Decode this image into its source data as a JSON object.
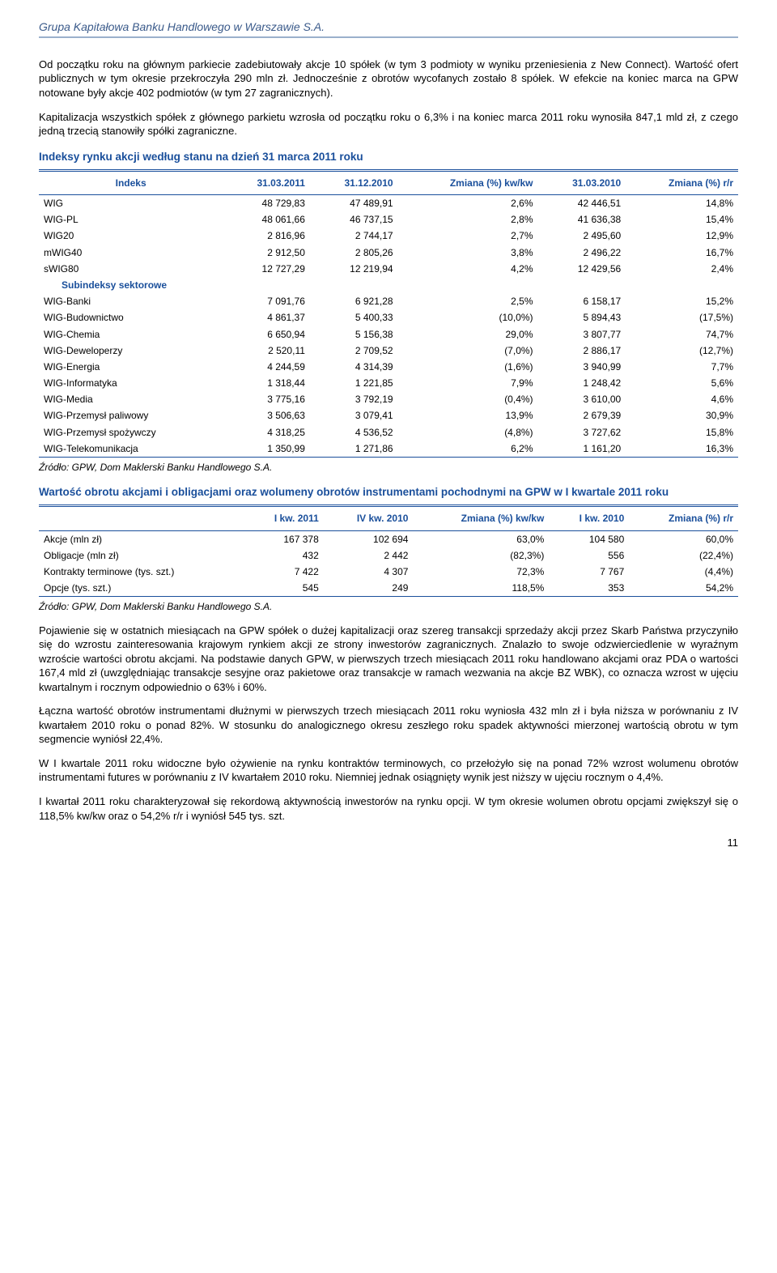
{
  "header": {
    "title": "Grupa Kapitałowa Banku Handlowego w Warszawie S.A."
  },
  "para1": "Od początku roku na głównym parkiecie zadebiutowały akcje 10 spółek (w tym 3 podmioty w wyniku przeniesienia z New Connect). Wartość ofert publicznych w tym okresie przekroczyła 290 mln zł. Jednocześnie z obrotów wycofanych zostało 8 spółek. W efekcie na koniec marca na GPW notowane były akcje 402 podmiotów (w tym 27 zagranicznych).",
  "para2": "Kapitalizacja wszystkich spółek z głównego parkietu wzrosła od początku roku o 6,3% i na koniec marca 2011 roku wynosiła 847,1 mld zł, z czego jedną trzecią stanowiły spółki zagraniczne.",
  "heading1": "Indeksy rynku akcji według stanu na dzień 31 marca 2011 roku",
  "table1": {
    "headers": [
      "Indeks",
      "31.03.2011",
      "31.12.2010",
      "Zmiana (%) kw/kw",
      "31.03.2010",
      "Zmiana (%) r/r"
    ],
    "rows": [
      [
        "WIG",
        "48 729,83",
        "47 489,91",
        "2,6%",
        "42 446,51",
        "14,8%"
      ],
      [
        "WIG-PL",
        "48 061,66",
        "46 737,15",
        "2,8%",
        "41 636,38",
        "15,4%"
      ],
      [
        "WIG20",
        "2 816,96",
        "2 744,17",
        "2,7%",
        "2 495,60",
        "12,9%"
      ],
      [
        "mWIG40",
        "2 912,50",
        "2 805,26",
        "3,8%",
        "2 496,22",
        "16,7%"
      ],
      [
        "sWIG80",
        "12 727,29",
        "12 219,94",
        "4,2%",
        "12 429,56",
        "2,4%"
      ]
    ],
    "subhead": "Subindeksy sektorowe",
    "rows2": [
      [
        "WIG-Banki",
        "7 091,76",
        "6 921,28",
        "2,5%",
        "6 158,17",
        "15,2%"
      ],
      [
        "WIG-Budownictwo",
        "4 861,37",
        "5 400,33",
        "(10,0%)",
        "5 894,43",
        "(17,5%)"
      ],
      [
        "WIG-Chemia",
        "6 650,94",
        "5 156,38",
        "29,0%",
        "3 807,77",
        "74,7%"
      ],
      [
        "WIG-Deweloperzy",
        "2 520,11",
        "2 709,52",
        "(7,0%)",
        "2 886,17",
        "(12,7%)"
      ],
      [
        "WIG-Energia",
        "4 244,59",
        "4 314,39",
        "(1,6%)",
        "3 940,99",
        "7,7%"
      ],
      [
        "WIG-Informatyka",
        "1 318,44",
        "1 221,85",
        "7,9%",
        "1 248,42",
        "5,6%"
      ],
      [
        "WIG-Media",
        "3 775,16",
        "3 792,19",
        "(0,4%)",
        "3 610,00",
        "4,6%"
      ],
      [
        "WIG-Przemysł paliwowy",
        "3 506,63",
        "3 079,41",
        "13,9%",
        "2 679,39",
        "30,9%"
      ],
      [
        "WIG-Przemysł spożywczy",
        "4 318,25",
        "4 536,52",
        "(4,8%)",
        "3 727,62",
        "15,8%"
      ],
      [
        "WIG-Telekomunikacja",
        "1 350,99",
        "1 271,86",
        "6,2%",
        "1 161,20",
        "16,3%"
      ]
    ]
  },
  "source1": "Źródło: GPW, Dom Maklerski Banku Handlowego S.A.",
  "heading2": "Wartość obrotu akcjami i obligacjami oraz wolumeny obrotów instrumentami pochodnymi na GPW w I kwartale 2011 roku",
  "table2": {
    "headers": [
      "",
      "I kw. 2011",
      "IV kw. 2010",
      "Zmiana (%) kw/kw",
      "I kw. 2010",
      "Zmiana (%) r/r"
    ],
    "rows": [
      [
        "Akcje (mln zł)",
        "167 378",
        "102 694",
        "63,0%",
        "104 580",
        "60,0%"
      ],
      [
        "Obligacje (mln zł)",
        "432",
        "2 442",
        "(82,3%)",
        "556",
        "(22,4%)"
      ],
      [
        "Kontrakty terminowe (tys. szt.)",
        "7 422",
        "4 307",
        "72,3%",
        "7 767",
        "(4,4%)"
      ],
      [
        "Opcje (tys. szt.)",
        "545",
        "249",
        "118,5%",
        "353",
        "54,2%"
      ]
    ]
  },
  "source2": "Źródło: GPW, Dom Maklerski Banku Handlowego S.A.",
  "para3": "Pojawienie się w ostatnich miesiącach na GPW spółek o dużej kapitalizacji oraz szereg transakcji sprzedaży akcji przez Skarb Państwa przyczyniło się do wzrostu zainteresowania krajowym rynkiem akcji ze strony inwestorów zagranicznych. Znalazło to swoje odzwierciedlenie w wyraźnym wzroście wartości obrotu akcjami. Na podstawie danych GPW, w pierwszych trzech miesiącach 2011 roku handlowano akcjami oraz PDA o wartości 167,4 mld zł (uwzględniając transakcje sesyjne oraz pakietowe oraz transakcje w ramach wezwania na akcje BZ WBK), co oznacza wzrost w ujęciu kwartalnym i rocznym odpowiednio o 63% i 60%.",
  "para4": "Łączna wartość obrotów instrumentami dłużnymi w pierwszych trzech miesiącach 2011 roku wyniosła 432 mln zł i była niższa w porównaniu z IV kwartałem 2010 roku o ponad 82%. W stosunku do analogicznego okresu zeszłego roku spadek aktywności mierzonej wartością obrotu w tym segmencie wyniósł 22,4%.",
  "para5": "W I kwartale 2011 roku widoczne było ożywienie na rynku kontraktów terminowych, co przełożyło się na ponad 72% wzrost wolumenu obrotów instrumentami futures w porównaniu z IV kwartałem 2010 roku. Niemniej jednak osiągnięty wynik jest niższy w ujęciu rocznym o 4,4%.",
  "para6": "I kwartał 2011 roku charakteryzował się rekordową aktywnością inwestorów na rynku opcji. W tym okresie wolumen obrotu opcjami zwiększył się o 118,5% kw/kw oraz o 54,2% r/r i wyniósł 545 tys. szt.",
  "pagenum": "11"
}
